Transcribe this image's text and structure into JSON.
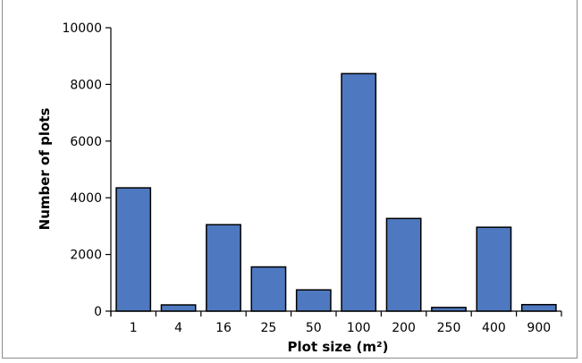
{
  "chart_data": {
    "type": "bar",
    "title": "",
    "xlabel": "Plot size (m²)",
    "ylabel": "Number of plots",
    "categories": [
      "1",
      "4",
      "16",
      "25",
      "50",
      "100",
      "200",
      "250",
      "400",
      "900"
    ],
    "values": [
      4350,
      220,
      3050,
      1560,
      750,
      8380,
      3270,
      130,
      2960,
      230
    ],
    "ylim": [
      0,
      10000
    ],
    "yticks": [
      0,
      2000,
      4000,
      6000,
      8000,
      10000
    ],
    "grid": false,
    "legend": "none",
    "bar_color": "#4e79c0",
    "bar_edge_color": "#000000"
  }
}
